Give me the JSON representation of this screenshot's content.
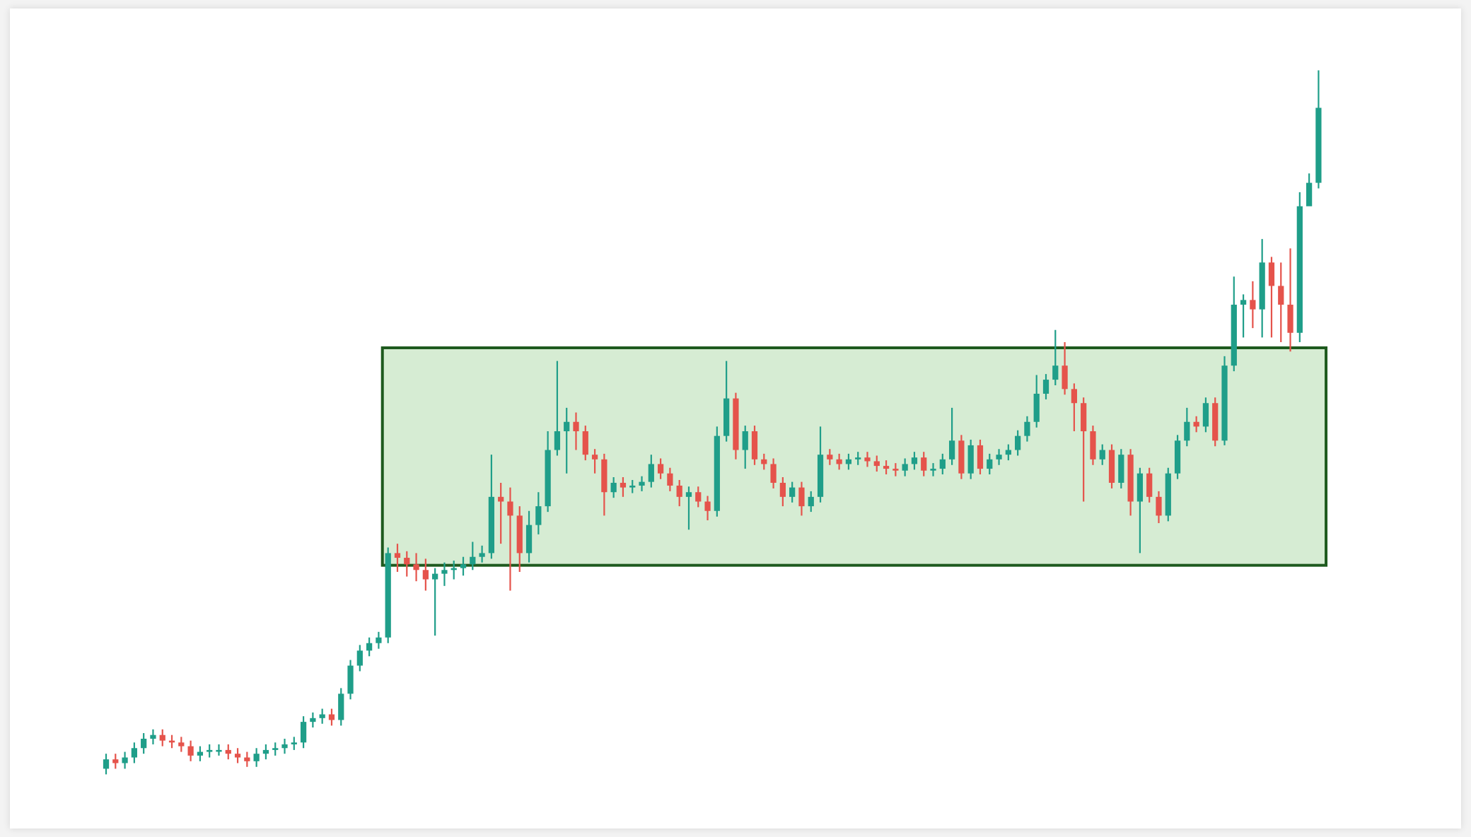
{
  "chart_data": {
    "type": "candlestick",
    "x": [
      0,
      1,
      2,
      3,
      4,
      5,
      6,
      7,
      8,
      9,
      10,
      11,
      12,
      13,
      14,
      15,
      16,
      17,
      18,
      19,
      20,
      21,
      22,
      23,
      24,
      25,
      26,
      27,
      28,
      29,
      30,
      31,
      32,
      33,
      34,
      35,
      36,
      37,
      38,
      39,
      40,
      41,
      42,
      43,
      44,
      45,
      46,
      47,
      48,
      49,
      50,
      51,
      52,
      53,
      54,
      55,
      56,
      57,
      58,
      59,
      60,
      61,
      62,
      63,
      64,
      65,
      66,
      67,
      68,
      69,
      70,
      71,
      72,
      73,
      74,
      75,
      76,
      77,
      78,
      79,
      80,
      81,
      82,
      83,
      84,
      85,
      86,
      87,
      88,
      89,
      90,
      91,
      92,
      93,
      94,
      95,
      96,
      97,
      98,
      99,
      100,
      101,
      102,
      103,
      104,
      105,
      106,
      107,
      108,
      109,
      110,
      111,
      112,
      113,
      114,
      115,
      116,
      117,
      118,
      119,
      120,
      121,
      122,
      123,
      124,
      125,
      126,
      127,
      128,
      129
    ],
    "open": [
      60,
      70,
      66,
      72,
      82,
      92,
      96,
      90,
      88,
      84,
      74,
      78,
      80,
      80,
      76,
      72,
      68,
      76,
      80,
      82,
      86,
      88,
      110,
      114,
      118,
      112,
      140,
      170,
      186,
      194,
      200,
      290,
      285,
      278,
      272,
      262,
      268,
      272,
      274,
      278,
      286,
      290,
      350,
      345,
      330,
      290,
      320,
      340,
      400,
      420,
      430,
      420,
      395,
      390,
      355,
      365,
      360,
      362,
      366,
      385,
      375,
      362,
      350,
      355,
      345,
      335,
      415,
      455,
      400,
      420,
      390,
      385,
      365,
      350,
      360,
      340,
      350,
      395,
      390,
      385,
      390,
      392,
      388,
      383,
      380,
      378,
      385,
      392,
      378,
      380,
      390,
      410,
      375,
      405,
      380,
      390,
      395,
      400,
      415,
      430,
      460,
      475,
      490,
      465,
      450,
      420,
      390,
      400,
      365,
      395,
      345,
      375,
      350,
      330,
      375,
      410,
      430,
      425,
      450,
      410,
      490,
      555,
      560,
      550,
      600,
      575,
      555,
      525,
      660,
      685
    ],
    "high": [
      76,
      76,
      78,
      88,
      98,
      102,
      102,
      96,
      94,
      90,
      84,
      86,
      86,
      86,
      82,
      78,
      82,
      86,
      88,
      92,
      94,
      116,
      120,
      124,
      124,
      146,
      176,
      192,
      200,
      206,
      296,
      300,
      292,
      290,
      284,
      274,
      280,
      282,
      286,
      302,
      298,
      395,
      365,
      360,
      340,
      335,
      355,
      420,
      495,
      445,
      440,
      426,
      401,
      396,
      371,
      371,
      368,
      372,
      395,
      391,
      381,
      368,
      361,
      361,
      351,
      425,
      495,
      461,
      426,
      426,
      396,
      391,
      371,
      366,
      366,
      356,
      425,
      401,
      396,
      396,
      398,
      398,
      394,
      389,
      386,
      391,
      398,
      398,
      386,
      396,
      445,
      416,
      411,
      411,
      396,
      401,
      406,
      421,
      436,
      480,
      481,
      528,
      515,
      471,
      456,
      426,
      406,
      406,
      401,
      401,
      381,
      381,
      356,
      381,
      416,
      445,
      436,
      456,
      456,
      500,
      585,
      566,
      580,
      625,
      606,
      600,
      615,
      675,
      695,
      805
    ],
    "low": [
      54,
      60,
      60,
      66,
      76,
      86,
      84,
      82,
      78,
      68,
      68,
      72,
      74,
      70,
      66,
      62,
      62,
      70,
      74,
      76,
      80,
      82,
      104,
      108,
      106,
      106,
      134,
      164,
      180,
      188,
      194,
      270,
      265,
      260,
      250,
      202,
      255,
      262,
      266,
      272,
      280,
      284,
      300,
      250,
      270,
      280,
      310,
      334,
      394,
      375,
      400,
      389,
      375,
      330,
      349,
      350,
      354,
      356,
      360,
      369,
      356,
      340,
      315,
      339,
      325,
      329,
      409,
      390,
      380,
      384,
      379,
      359,
      340,
      344,
      330,
      334,
      344,
      384,
      379,
      379,
      384,
      382,
      377,
      374,
      372,
      372,
      379,
      372,
      372,
      374,
      384,
      369,
      369,
      374,
      374,
      384,
      389,
      394,
      409,
      424,
      454,
      469,
      459,
      420,
      345,
      384,
      384,
      359,
      359,
      330,
      290,
      344,
      322,
      324,
      369,
      404,
      419,
      419,
      404,
      405,
      484,
      520,
      530,
      520,
      520,
      515,
      505,
      515,
      665,
      679
    ],
    "close": [
      70,
      66,
      72,
      82,
      92,
      96,
      90,
      88,
      84,
      74,
      78,
      80,
      80,
      76,
      72,
      68,
      76,
      80,
      82,
      86,
      88,
      110,
      114,
      118,
      112,
      140,
      170,
      186,
      194,
      200,
      290,
      285,
      278,
      272,
      262,
      268,
      272,
      274,
      278,
      286,
      290,
      350,
      345,
      330,
      290,
      320,
      340,
      400,
      420,
      430,
      420,
      395,
      390,
      355,
      365,
      360,
      362,
      366,
      385,
      375,
      362,
      350,
      355,
      345,
      335,
      415,
      455,
      400,
      420,
      390,
      385,
      365,
      350,
      360,
      340,
      350,
      395,
      390,
      385,
      390,
      392,
      388,
      383,
      380,
      378,
      385,
      392,
      378,
      380,
      390,
      410,
      375,
      405,
      380,
      390,
      395,
      400,
      415,
      430,
      460,
      475,
      490,
      465,
      450,
      420,
      390,
      400,
      365,
      395,
      345,
      375,
      350,
      330,
      375,
      410,
      430,
      425,
      450,
      410,
      490,
      555,
      560,
      550,
      600,
      575,
      555,
      525,
      660,
      685,
      765
    ],
    "up_color": "#1f9e89",
    "down_color": "#e5534b",
    "zone": {
      "x": [
        29.4,
        129.8
      ],
      "y": [
        277,
        509
      ],
      "fill": "#d6ecd3",
      "stroke": "#1e5a1e"
    },
    "xlim": [
      -1,
      130
    ],
    "ylim": [
      0,
      880
    ]
  }
}
